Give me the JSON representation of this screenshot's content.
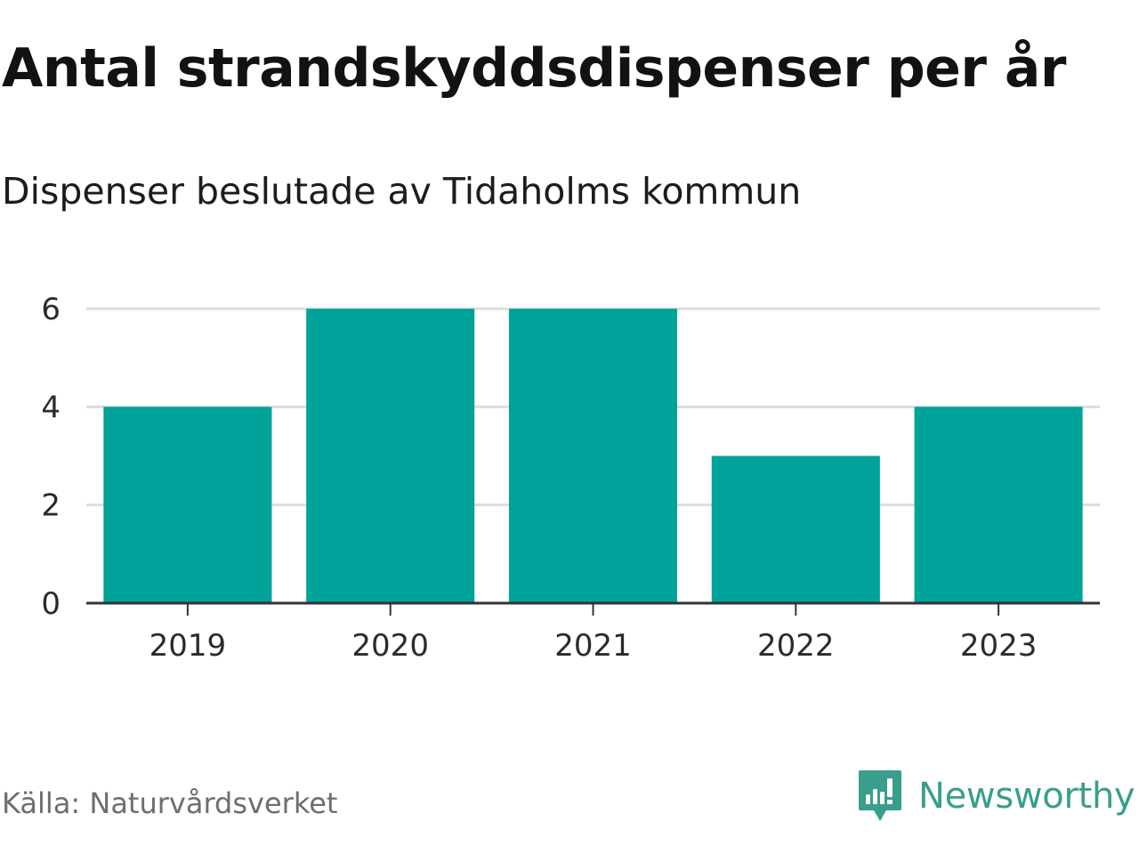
{
  "title": "Antal strandskyddsdispenser per år",
  "subtitle": "Dispenser beslutade av Tidaholms kommun",
  "source": "Källa: Naturvårdsverket",
  "brand": {
    "name": "Newsworthy",
    "icon": "newsworthy-logo-icon",
    "color": "#3a9e8c"
  },
  "colors": {
    "bar": "#00a39a",
    "grid": "#dddddd",
    "axis": "#333333"
  },
  "chart_data": {
    "type": "bar",
    "title": "Antal strandskyddsdispenser per år",
    "subtitle": "Dispenser beslutade av Tidaholms kommun",
    "categories": [
      "2019",
      "2020",
      "2021",
      "2022",
      "2023"
    ],
    "values": [
      4,
      6,
      6,
      3,
      4
    ],
    "xlabel": "",
    "ylabel": "",
    "ylim": [
      0,
      6
    ],
    "yticks": [
      0,
      2,
      4,
      6
    ],
    "grid": true
  }
}
